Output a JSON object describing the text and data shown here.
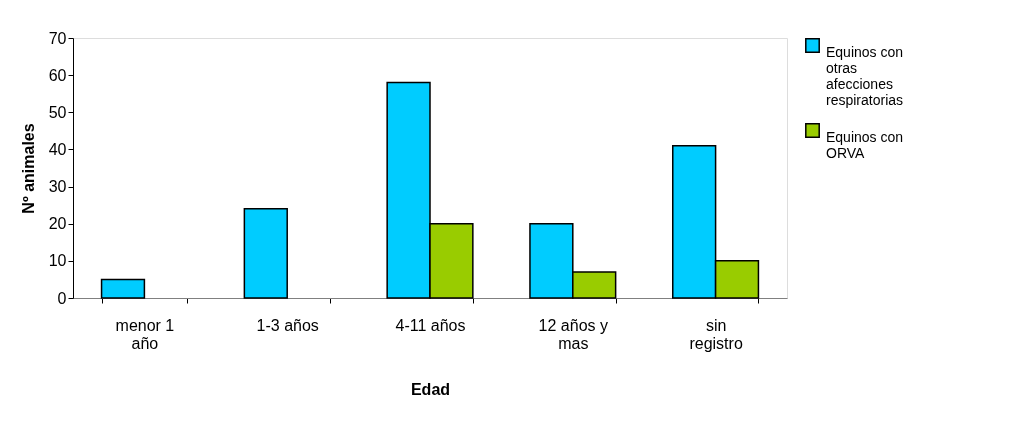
{
  "chart_data": {
    "type": "bar",
    "xlabel": "Edad",
    "ylabel": "Nº animales",
    "categories": [
      "menor 1 año",
      "1-3 años",
      "4-11 años",
      "12 años y mas",
      "sin registro"
    ],
    "series": [
      {
        "name": "Equinos con otras afecciones respiratorias",
        "color": "#00ccff",
        "values": [
          5,
          24,
          58,
          20,
          41
        ]
      },
      {
        "name": "Equinos con ORVA",
        "color": "#99cc00",
        "values": [
          null,
          null,
          20,
          7,
          10
        ]
      }
    ],
    "ylim": [
      0,
      70
    ],
    "yticks": [
      0,
      10,
      20,
      30,
      40,
      50,
      60,
      70
    ],
    "legend": "right"
  }
}
